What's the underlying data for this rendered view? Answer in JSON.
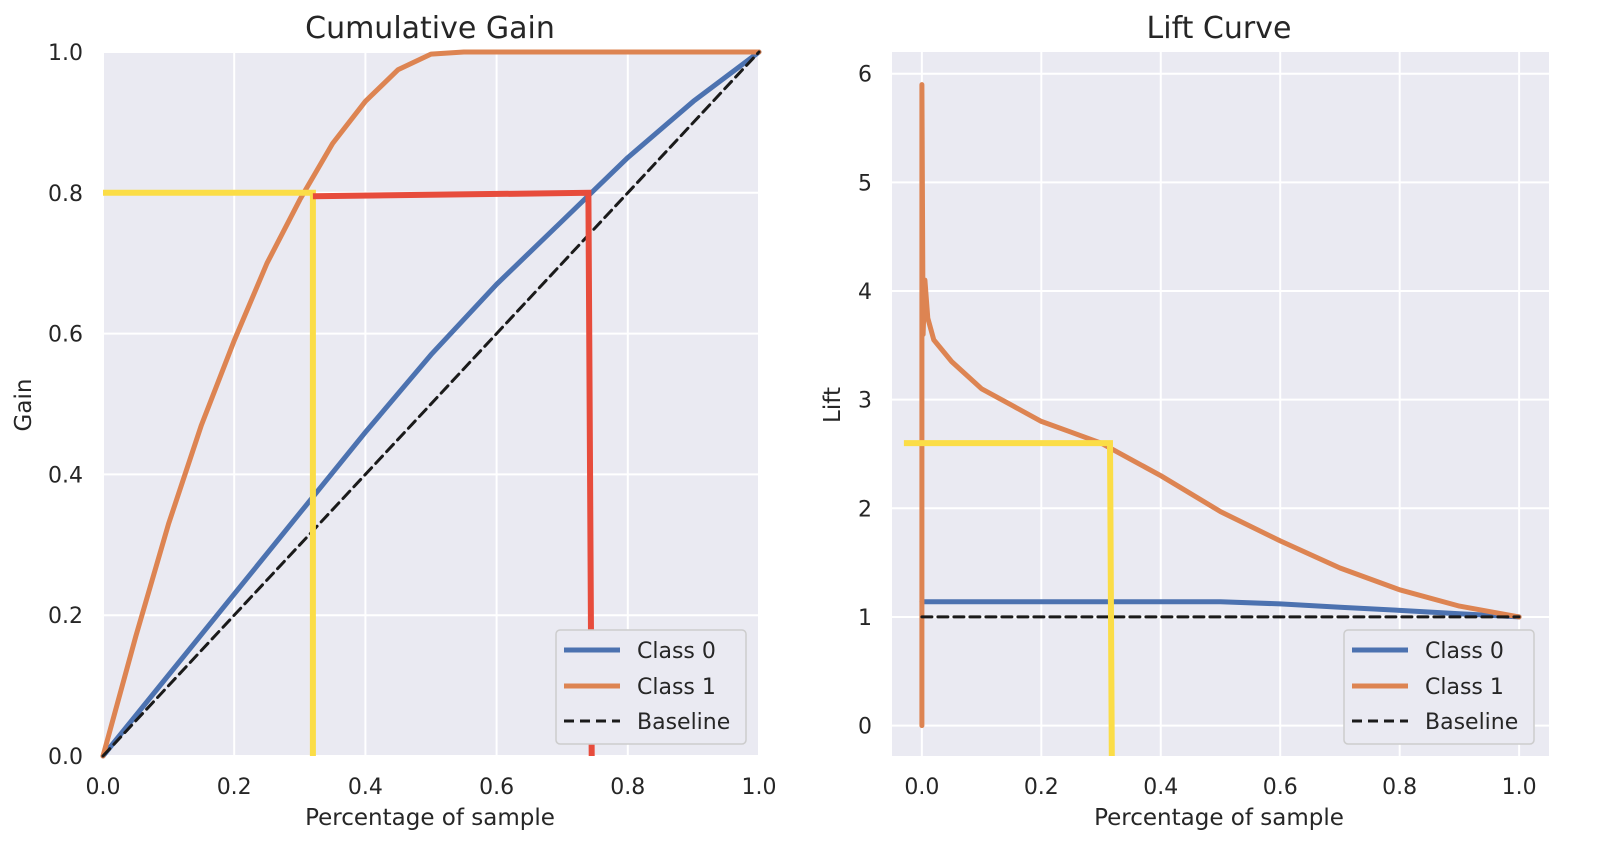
{
  "colors": {
    "background": "#eaeaf2",
    "grid": "#ffffff",
    "class0": "#4c72b0",
    "class1": "#dd8452",
    "baseline": "#1a1a1a",
    "annotation_yellow": "#fbdd47",
    "annotation_red": "#e74c3c"
  },
  "chart_data": [
    {
      "type": "line",
      "title": "Cumulative Gain",
      "xlabel": "Percentage of sample",
      "ylabel": "Gain",
      "xlim": [
        0,
        1
      ],
      "ylim": [
        0,
        1
      ],
      "xticks": [
        "0.0",
        "0.2",
        "0.4",
        "0.6",
        "0.8",
        "1.0"
      ],
      "yticks": [
        "0.0",
        "0.2",
        "0.4",
        "0.6",
        "0.8",
        "1.0"
      ],
      "grid": true,
      "legend": "bottom-right",
      "series": [
        {
          "name": "Class 0",
          "color": "#4c72b0",
          "x": [
            0,
            0.1,
            0.2,
            0.3,
            0.4,
            0.5,
            0.6,
            0.7,
            0.8,
            0.9,
            1.0
          ],
          "y": [
            0,
            0.115,
            0.23,
            0.345,
            0.46,
            0.57,
            0.67,
            0.76,
            0.85,
            0.93,
            1.0
          ]
        },
        {
          "name": "Class 1",
          "color": "#dd8452",
          "x": [
            0,
            0.05,
            0.1,
            0.15,
            0.2,
            0.25,
            0.3,
            0.35,
            0.4,
            0.45,
            0.5,
            0.55,
            0.6,
            0.8,
            1.0
          ],
          "y": [
            0,
            0.17,
            0.33,
            0.47,
            0.59,
            0.7,
            0.79,
            0.87,
            0.93,
            0.975,
            0.997,
            1.0,
            1.0,
            1.0,
            1.0
          ]
        },
        {
          "name": "Baseline",
          "color": "#1a1a1a",
          "dashed": true,
          "x": [
            0,
            1
          ],
          "y": [
            0,
            1
          ]
        }
      ],
      "annotations": [
        {
          "color": "#fbdd47",
          "points": [
            [
              0,
              0.8
            ],
            [
              0.32,
              0.8
            ],
            [
              0.32,
              0.0
            ]
          ]
        },
        {
          "color": "#e74c3c",
          "points": [
            [
              0.32,
              0.795
            ],
            [
              0.74,
              0.8
            ],
            [
              0.745,
              0.0
            ]
          ]
        }
      ]
    },
    {
      "type": "line",
      "title": "Lift Curve",
      "xlabel": "Percentage of sample",
      "ylabel": "Lift",
      "xlim": [
        -0.05,
        1.05
      ],
      "ylim": [
        -0.28,
        6.2
      ],
      "xticks": [
        "0.0",
        "0.2",
        "0.4",
        "0.6",
        "0.8",
        "1.0"
      ],
      "yticks": [
        "0",
        "1",
        "2",
        "3",
        "4",
        "5",
        "6"
      ],
      "grid": true,
      "legend": "bottom-right",
      "series": [
        {
          "name": "Class 0",
          "color": "#4c72b0",
          "x": [
            0,
            0.1,
            0.2,
            0.3,
            0.4,
            0.5,
            0.6,
            0.7,
            0.8,
            0.9,
            1.0
          ],
          "y": [
            1.14,
            1.14,
            1.14,
            1.14,
            1.14,
            1.14,
            1.12,
            1.09,
            1.06,
            1.03,
            1.0
          ]
        },
        {
          "name": "Class 1",
          "color": "#dd8452",
          "x": [
            0,
            0,
            0.002,
            0.005,
            0.01,
            0.02,
            0.05,
            0.1,
            0.15,
            0.2,
            0.25,
            0.3,
            0.35,
            0.4,
            0.5,
            0.6,
            0.7,
            0.8,
            0.9,
            1.0
          ],
          "y": [
            0,
            5.9,
            3.6,
            4.1,
            3.75,
            3.55,
            3.35,
            3.1,
            2.95,
            2.8,
            2.7,
            2.6,
            2.45,
            2.3,
            1.97,
            1.7,
            1.45,
            1.25,
            1.1,
            1.0
          ]
        },
        {
          "name": "Baseline",
          "color": "#1a1a1a",
          "dashed": true,
          "x": [
            0,
            1
          ],
          "y": [
            1,
            1
          ]
        }
      ],
      "annotations": [
        {
          "color": "#fbdd47",
          "points": [
            [
              -0.03,
              2.6
            ],
            [
              0.315,
              2.6
            ],
            [
              0.318,
              -0.28
            ]
          ]
        }
      ]
    }
  ]
}
